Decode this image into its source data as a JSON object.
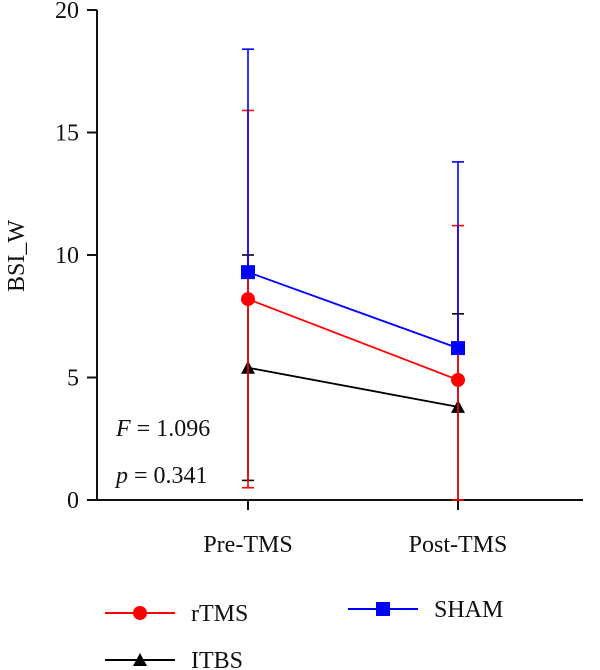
{
  "chart_data": {
    "type": "line",
    "xlabel": "",
    "ylabel": "BSI_W",
    "ylim": [
      0,
      20
    ],
    "yticks": [
      0,
      5,
      10,
      15,
      20
    ],
    "categories": [
      "Pre-TMS",
      "Post-TMS"
    ],
    "series": [
      {
        "name": "rTMS",
        "color": "#ff0000",
        "marker": "circle",
        "values": [
          8.2,
          4.9
        ],
        "error_upper": [
          15.9,
          11.2
        ],
        "error_lower": [
          0.5,
          0
        ]
      },
      {
        "name": "ITBS",
        "color": "#000000",
        "marker": "triangle",
        "values": [
          5.4,
          3.8
        ],
        "error_upper": [
          10.0,
          7.6
        ],
        "error_lower": [
          0.8,
          0
        ]
      },
      {
        "name": "SHAM",
        "color": "#0000ff",
        "marker": "square",
        "values": [
          9.3,
          6.2
        ],
        "error_upper": [
          18.4,
          13.8
        ],
        "error_lower": [
          null,
          null
        ]
      }
    ],
    "annotations": {
      "f_symbol": "F",
      "f_value": " = 1.096",
      "p_symbol": "p",
      "p_value": " = 0.341"
    },
    "legend_position": "bottom",
    "grid": false
  }
}
